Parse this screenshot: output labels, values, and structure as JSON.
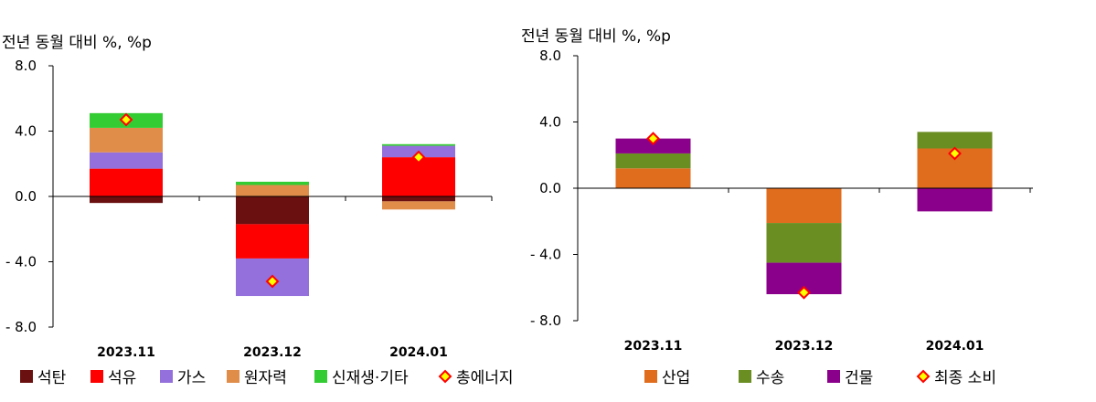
{
  "chart_data": [
    {
      "type": "bar",
      "stacked": true,
      "unit_label": "전년 동월 대비 %, %p",
      "categories": [
        "2023.11",
        "2023.12",
        "2024.01"
      ],
      "ylim": [
        -8.0,
        8.0
      ],
      "yticks": [
        8.0,
        4.0,
        0.0,
        -4.0,
        -8.0
      ],
      "ytick_labels": [
        "8.0",
        "4.0",
        "0.0",
        "- 4.0",
        "- 8.0"
      ],
      "grid": false,
      "legend_position": "bottom",
      "series": [
        {
          "name": "석탄",
          "kind": "bar",
          "color": "#6b1010",
          "values": [
            -0.4,
            -1.7,
            -0.3
          ]
        },
        {
          "name": "석유",
          "kind": "bar",
          "color": "#ff0000",
          "values": [
            1.7,
            -2.1,
            2.4
          ]
        },
        {
          "name": "가스",
          "kind": "bar",
          "color": "#9370db",
          "values": [
            1.0,
            -2.3,
            0.7
          ]
        },
        {
          "name": "원자력",
          "kind": "bar",
          "color": "#e08d4a",
          "values": [
            1.5,
            0.7,
            -0.5
          ]
        },
        {
          "name": "신재생·기타",
          "kind": "bar",
          "color": "#33cc33",
          "values": [
            0.9,
            0.2,
            0.1
          ]
        },
        {
          "name": "총에너지",
          "kind": "marker",
          "color": "#ffff00",
          "edge": "#ff0000",
          "values": [
            4.7,
            -5.2,
            2.4
          ]
        }
      ]
    },
    {
      "type": "bar",
      "stacked": true,
      "unit_label": "전년 동월 대비 %, %p",
      "categories": [
        "2023.11",
        "2023.12",
        "2024.01"
      ],
      "ylim": [
        -8.0,
        8.0
      ],
      "yticks": [
        8.0,
        4.0,
        0.0,
        -4.0,
        -8.0
      ],
      "ytick_labels": [
        "8.0",
        "4.0",
        "0.0",
        "- 4.0",
        "- 8.0"
      ],
      "grid": false,
      "legend_position": "bottom",
      "series": [
        {
          "name": "산업",
          "kind": "bar",
          "color": "#e06c1e",
          "values": [
            1.2,
            -2.1,
            2.4
          ]
        },
        {
          "name": "수송",
          "kind": "bar",
          "color": "#6b8e23",
          "values": [
            0.9,
            -2.4,
            1.0
          ]
        },
        {
          "name": "건물",
          "kind": "bar",
          "color": "#8b008b",
          "values": [
            0.9,
            -1.9,
            -1.4
          ]
        },
        {
          "name": "최종 소비",
          "kind": "marker",
          "color": "#ffff00",
          "edge": "#ff0000",
          "values": [
            3.0,
            -6.3,
            2.1
          ]
        }
      ]
    }
  ]
}
